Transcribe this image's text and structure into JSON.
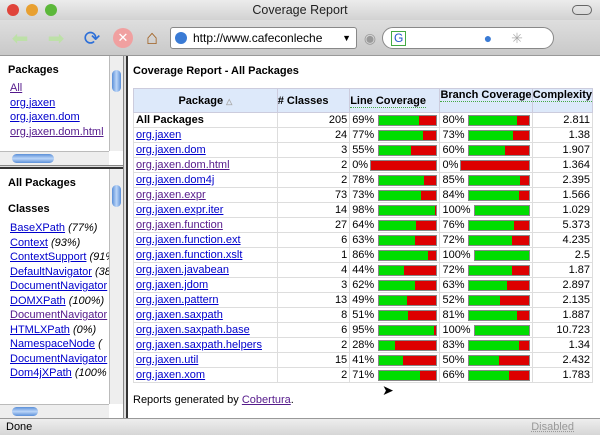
{
  "window": {
    "title": "Coverage Report"
  },
  "toolbar": {
    "url": "http://www.cafeconleche",
    "search_engine": "G"
  },
  "packages_frame": {
    "heading": "Packages",
    "items": [
      {
        "label": "All",
        "visited": true
      },
      {
        "label": "org.jaxen",
        "visited": false
      },
      {
        "label": "org.jaxen.dom",
        "visited": false
      },
      {
        "label": "org.jaxen.dom.html",
        "visited": true
      }
    ]
  },
  "classes_frame": {
    "heading": "All Packages",
    "subheading": "Classes",
    "items": [
      {
        "label": "BaseXPath",
        "pct": "(77%)",
        "visited": false
      },
      {
        "label": "Context",
        "pct": "(93%)",
        "visited": false
      },
      {
        "label": "ContextSupport",
        "pct": "(91%",
        "visited": false
      },
      {
        "label": "DefaultNavigator",
        "pct": "(38",
        "visited": false
      },
      {
        "label": "DocumentNavigator",
        "pct": "",
        "visited": false
      },
      {
        "label": "DOMXPath",
        "pct": "(100%)",
        "visited": false
      },
      {
        "label": "DocumentNavigator",
        "pct": "",
        "visited": true
      },
      {
        "label": "HTMLXPath",
        "pct": "(0%)",
        "visited": false
      },
      {
        "label": "NamespaceNode",
        "pct": "(",
        "visited": false
      },
      {
        "label": "DocumentNavigator",
        "pct": "",
        "visited": false
      },
      {
        "label": "Dom4jXPath",
        "pct": "(100%",
        "visited": false
      }
    ]
  },
  "report": {
    "title": "Coverage Report - All Packages",
    "headers": {
      "package": "Package",
      "classes": "# Classes",
      "line": "Line Coverage",
      "branch": "Branch Coverage",
      "complexity": "Complexity"
    },
    "rows": [
      {
        "name": "All Packages",
        "classes": "205",
        "line": 69,
        "branch": 80,
        "complexity": "2.811",
        "bold": true
      },
      {
        "name": "org.jaxen",
        "classes": "24",
        "line": 77,
        "branch": 73,
        "complexity": "1.38"
      },
      {
        "name": "org.jaxen.dom",
        "classes": "3",
        "line": 55,
        "branch": 60,
        "complexity": "1.907"
      },
      {
        "name": "org.jaxen.dom.html",
        "classes": "2",
        "line": 0,
        "branch": 0,
        "complexity": "1.364",
        "visited": true
      },
      {
        "name": "org.jaxen.dom4j",
        "classes": "2",
        "line": 78,
        "branch": 85,
        "complexity": "2.395"
      },
      {
        "name": "org.jaxen.expr",
        "classes": "73",
        "line": 73,
        "branch": 84,
        "complexity": "1.566",
        "visited": true
      },
      {
        "name": "org.jaxen.expr.iter",
        "classes": "14",
        "line": 98,
        "branch": 100,
        "complexity": "1.029"
      },
      {
        "name": "org.jaxen.function",
        "classes": "27",
        "line": 64,
        "branch": 76,
        "complexity": "5.373",
        "visited": true
      },
      {
        "name": "org.jaxen.function.ext",
        "classes": "6",
        "line": 63,
        "branch": 72,
        "complexity": "4.235"
      },
      {
        "name": "org.jaxen.function.xslt",
        "classes": "1",
        "line": 86,
        "branch": 100,
        "complexity": "2.5"
      },
      {
        "name": "org.jaxen.javabean",
        "classes": "4",
        "line": 44,
        "branch": 72,
        "complexity": "1.87"
      },
      {
        "name": "org.jaxen.jdom",
        "classes": "3",
        "line": 62,
        "branch": 63,
        "complexity": "2.897"
      },
      {
        "name": "org.jaxen.pattern",
        "classes": "13",
        "line": 49,
        "branch": 52,
        "complexity": "2.135"
      },
      {
        "name": "org.jaxen.saxpath",
        "classes": "8",
        "line": 51,
        "branch": 81,
        "complexity": "1.887"
      },
      {
        "name": "org.jaxen.saxpath.base",
        "classes": "6",
        "line": 95,
        "branch": 100,
        "complexity": "10.723"
      },
      {
        "name": "org.jaxen.saxpath.helpers",
        "classes": "2",
        "line": 28,
        "branch": 83,
        "complexity": "1.34"
      },
      {
        "name": "org.jaxen.util",
        "classes": "15",
        "line": 41,
        "branch": 50,
        "complexity": "2.432"
      },
      {
        "name": "org.jaxen.xom",
        "classes": "2",
        "line": 71,
        "branch": 66,
        "complexity": "1.783"
      }
    ],
    "footer_text": "Reports generated by ",
    "footer_link": "Cobertura",
    "footer_end": "."
  },
  "status": {
    "text": "Done",
    "popup": "Disabled"
  },
  "colors": {
    "covered": "#00dd00",
    "uncovered": "#dd0000",
    "header_bg": "#dde9fa"
  }
}
